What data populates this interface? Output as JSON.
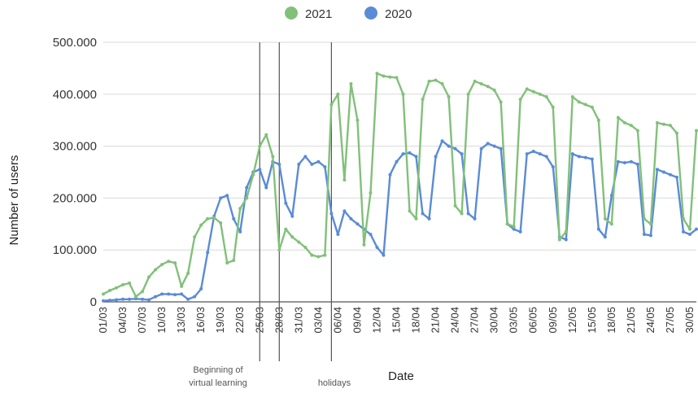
{
  "chart_data": {
    "type": "line",
    "title": "",
    "xlabel": "Date",
    "ylabel": "Number of users",
    "ylim": [
      0,
      500000
    ],
    "y_ticks": [
      {
        "value": 0,
        "label": "0"
      },
      {
        "value": 100000,
        "label": "100.000"
      },
      {
        "value": 200000,
        "label": "200.000"
      },
      {
        "value": 300000,
        "label": "300.000"
      },
      {
        "value": 400000,
        "label": "400.000"
      },
      {
        "value": 500000,
        "label": "500.000"
      }
    ],
    "x_ticks": [
      {
        "day": 0,
        "label": "01/03"
      },
      {
        "day": 3,
        "label": "04/03"
      },
      {
        "day": 6,
        "label": "07/03"
      },
      {
        "day": 9,
        "label": "10/03"
      },
      {
        "day": 12,
        "label": "13/03"
      },
      {
        "day": 15,
        "label": "16/03"
      },
      {
        "day": 18,
        "label": "19/03"
      },
      {
        "day": 21,
        "label": "22/03"
      },
      {
        "day": 24,
        "label": "25/03"
      },
      {
        "day": 27,
        "label": "28/03"
      },
      {
        "day": 30,
        "label": "31/03"
      },
      {
        "day": 33,
        "label": "03/04"
      },
      {
        "day": 36,
        "label": "06/04"
      },
      {
        "day": 39,
        "label": "09/04"
      },
      {
        "day": 42,
        "label": "12/04"
      },
      {
        "day": 45,
        "label": "15/04"
      },
      {
        "day": 48,
        "label": "18/04"
      },
      {
        "day": 51,
        "label": "21/04"
      },
      {
        "day": 54,
        "label": "24/04"
      },
      {
        "day": 57,
        "label": "27/04"
      },
      {
        "day": 60,
        "label": "30/04"
      },
      {
        "day": 63,
        "label": "03/05"
      },
      {
        "day": 66,
        "label": "06/05"
      },
      {
        "day": 69,
        "label": "09/05"
      },
      {
        "day": 72,
        "label": "12/05"
      },
      {
        "day": 75,
        "label": "15/05"
      },
      {
        "day": 78,
        "label": "18/05"
      },
      {
        "day": 81,
        "label": "21/05"
      },
      {
        "day": 84,
        "label": "24/05"
      },
      {
        "day": 87,
        "label": "27/05"
      },
      {
        "day": 90,
        "label": "30/05"
      }
    ],
    "xlim": [
      0,
      91
    ],
    "grid": true,
    "legend_position": "top-center",
    "series": [
      {
        "name": "2021",
        "color": "#82c07a",
        "points": [
          [
            0,
            15000
          ],
          [
            1,
            22000
          ],
          [
            2,
            27000
          ],
          [
            3,
            33000
          ],
          [
            4,
            36000
          ],
          [
            5,
            10000
          ],
          [
            6,
            20000
          ],
          [
            7,
            48000
          ],
          [
            8,
            62000
          ],
          [
            9,
            72000
          ],
          [
            10,
            78000
          ],
          [
            11,
            75000
          ],
          [
            12,
            30000
          ],
          [
            13,
            55000
          ],
          [
            14,
            125000
          ],
          [
            15,
            148000
          ],
          [
            16,
            160000
          ],
          [
            17,
            162000
          ],
          [
            18,
            152000
          ],
          [
            19,
            75000
          ],
          [
            20,
            80000
          ],
          [
            21,
            180000
          ],
          [
            22,
            200000
          ],
          [
            23,
            245000
          ],
          [
            24,
            300000
          ],
          [
            25,
            322000
          ],
          [
            26,
            280000
          ],
          [
            27,
            100000
          ],
          [
            28,
            140000
          ],
          [
            29,
            125000
          ],
          [
            30,
            115000
          ],
          [
            31,
            105000
          ],
          [
            32,
            90000
          ],
          [
            33,
            87000
          ],
          [
            34,
            90000
          ],
          [
            35,
            380000
          ],
          [
            36,
            400000
          ],
          [
            37,
            235000
          ],
          [
            38,
            420000
          ],
          [
            39,
            350000
          ],
          [
            40,
            110000
          ],
          [
            41,
            210000
          ],
          [
            42,
            440000
          ],
          [
            43,
            435000
          ],
          [
            44,
            433000
          ],
          [
            45,
            432000
          ],
          [
            46,
            400000
          ],
          [
            47,
            175000
          ],
          [
            48,
            160000
          ],
          [
            49,
            390000
          ],
          [
            50,
            425000
          ],
          [
            51,
            427000
          ],
          [
            52,
            420000
          ],
          [
            53,
            395000
          ],
          [
            54,
            185000
          ],
          [
            55,
            170000
          ],
          [
            56,
            400000
          ],
          [
            57,
            425000
          ],
          [
            58,
            420000
          ],
          [
            59,
            415000
          ],
          [
            60,
            408000
          ],
          [
            61,
            385000
          ],
          [
            62,
            150000
          ],
          [
            63,
            145000
          ],
          [
            64,
            390000
          ],
          [
            65,
            410000
          ],
          [
            66,
            405000
          ],
          [
            67,
            400000
          ],
          [
            68,
            395000
          ],
          [
            69,
            375000
          ],
          [
            70,
            120000
          ],
          [
            71,
            135000
          ],
          [
            72,
            395000
          ],
          [
            73,
            385000
          ],
          [
            74,
            380000
          ],
          [
            75,
            375000
          ],
          [
            76,
            350000
          ],
          [
            77,
            160000
          ],
          [
            78,
            150000
          ],
          [
            79,
            355000
          ],
          [
            80,
            345000
          ],
          [
            81,
            340000
          ],
          [
            82,
            330000
          ],
          [
            83,
            160000
          ],
          [
            84,
            150000
          ],
          [
            85,
            345000
          ],
          [
            86,
            342000
          ],
          [
            87,
            340000
          ],
          [
            88,
            325000
          ],
          [
            89,
            160000
          ],
          [
            90,
            140000
          ],
          [
            91,
            330000
          ]
        ]
      },
      {
        "name": "2020",
        "color": "#5a8bd6",
        "points": [
          [
            0,
            2000
          ],
          [
            1,
            3000
          ],
          [
            2,
            4000
          ],
          [
            3,
            5000
          ],
          [
            4,
            5000
          ],
          [
            5,
            6000
          ],
          [
            6,
            5000
          ],
          [
            7,
            4000
          ],
          [
            8,
            10000
          ],
          [
            9,
            15000
          ],
          [
            10,
            15000
          ],
          [
            11,
            14000
          ],
          [
            12,
            15000
          ],
          [
            13,
            5000
          ],
          [
            14,
            10000
          ],
          [
            15,
            25000
          ],
          [
            16,
            95000
          ],
          [
            17,
            165000
          ],
          [
            18,
            200000
          ],
          [
            19,
            205000
          ],
          [
            20,
            160000
          ],
          [
            21,
            135000
          ],
          [
            22,
            220000
          ],
          [
            23,
            250000
          ],
          [
            24,
            255000
          ],
          [
            25,
            220000
          ],
          [
            26,
            270000
          ],
          [
            27,
            265000
          ],
          [
            28,
            190000
          ],
          [
            29,
            165000
          ],
          [
            30,
            265000
          ],
          [
            31,
            280000
          ],
          [
            32,
            265000
          ],
          [
            33,
            270000
          ],
          [
            34,
            260000
          ],
          [
            35,
            170000
          ],
          [
            36,
            130000
          ],
          [
            37,
            175000
          ],
          [
            38,
            160000
          ],
          [
            39,
            150000
          ],
          [
            40,
            140000
          ],
          [
            41,
            130000
          ],
          [
            42,
            105000
          ],
          [
            43,
            90000
          ],
          [
            44,
            245000
          ],
          [
            45,
            270000
          ],
          [
            46,
            285000
          ],
          [
            47,
            287000
          ],
          [
            48,
            280000
          ],
          [
            49,
            170000
          ],
          [
            50,
            160000
          ],
          [
            51,
            280000
          ],
          [
            52,
            310000
          ],
          [
            53,
            300000
          ],
          [
            54,
            295000
          ],
          [
            55,
            285000
          ],
          [
            56,
            170000
          ],
          [
            57,
            160000
          ],
          [
            58,
            295000
          ],
          [
            59,
            305000
          ],
          [
            60,
            300000
          ],
          [
            61,
            295000
          ],
          [
            62,
            150000
          ],
          [
            63,
            140000
          ],
          [
            64,
            135000
          ],
          [
            65,
            285000
          ],
          [
            66,
            290000
          ],
          [
            67,
            285000
          ],
          [
            68,
            280000
          ],
          [
            69,
            260000
          ],
          [
            70,
            125000
          ],
          [
            71,
            120000
          ],
          [
            72,
            285000
          ],
          [
            73,
            280000
          ],
          [
            74,
            278000
          ],
          [
            75,
            275000
          ],
          [
            76,
            140000
          ],
          [
            77,
            125000
          ],
          [
            78,
            205000
          ],
          [
            79,
            270000
          ],
          [
            80,
            268000
          ],
          [
            81,
            270000
          ],
          [
            82,
            265000
          ],
          [
            83,
            130000
          ],
          [
            84,
            128000
          ],
          [
            85,
            255000
          ],
          [
            86,
            250000
          ],
          [
            87,
            245000
          ],
          [
            88,
            240000
          ],
          [
            89,
            135000
          ],
          [
            90,
            130000
          ],
          [
            91,
            140000
          ]
        ]
      }
    ],
    "vertical_markers": [
      {
        "day": 24.0
      },
      {
        "day": 27.0
      },
      {
        "day": 35.0
      }
    ],
    "annotations": [
      {
        "text_lines": [
          "Beginning of",
          "virtual learning"
        ]
      },
      {
        "text_lines": [
          "holidays"
        ]
      }
    ]
  }
}
